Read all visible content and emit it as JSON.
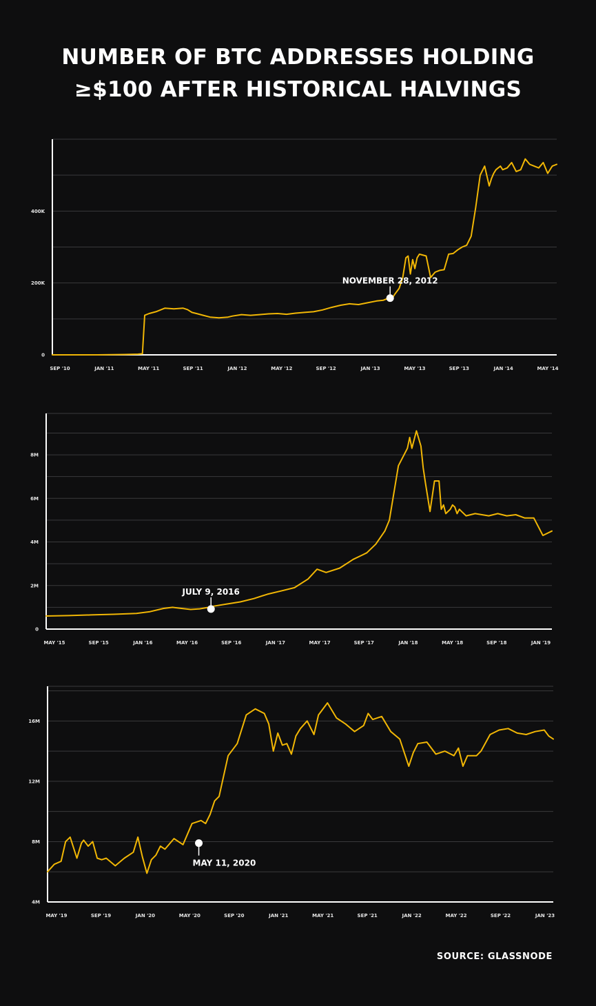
{
  "title_line1": "NUMBER OF BTC ADDRESSES HOLDING",
  "title_line2": "≥$100 AFTER HISTORICAL HALVINGS",
  "source": "SOURCE: GLASSNODE",
  "colors": {
    "background": "#0e0e0f",
    "line": "#f2b705",
    "grid": "#3a3a3c",
    "axis": "#ffffff",
    "text": "#ffffff"
  },
  "chart_data": [
    {
      "type": "line",
      "title": "",
      "xlabel": "",
      "ylabel": "",
      "grid": true,
      "x_ticks": [
        "SEP '10",
        "JAN '11",
        "MAY '11",
        "SEP '11",
        "JAN '12",
        "MAY '12",
        "SEP '12",
        "JAN '13",
        "MAY '13",
        "SEP '13",
        "JAN '14",
        "MAY '14"
      ],
      "y_ticks": [
        {
          "label": "0",
          "value": 0
        },
        {
          "label": "200K",
          "value": 200000
        },
        {
          "label": "400K",
          "value": 400000
        }
      ],
      "ylim": [
        0,
        600000
      ],
      "xlim": [
        0,
        11.2
      ],
      "series": [
        {
          "x": [
            0,
            1,
            1.6,
            1.9,
            2.0,
            2.05,
            2.15,
            2.3,
            2.5,
            2.7,
            2.9,
            3.0,
            3.1,
            3.2,
            3.35,
            3.5,
            3.7,
            3.9,
            4.0,
            4.2,
            4.4,
            4.6,
            4.8,
            5.0,
            5.2,
            5.4,
            5.6,
            5.8,
            6.0,
            6.2,
            6.4,
            6.6,
            6.8,
            7.0,
            7.2,
            7.35,
            7.45,
            7.55,
            7.6,
            7.7,
            7.78,
            7.85,
            7.9,
            7.95,
            8.0,
            8.05,
            8.1,
            8.15,
            8.3,
            8.4,
            8.5,
            8.6,
            8.7,
            8.8,
            8.9,
            9.0,
            9.1,
            9.2,
            9.3,
            9.4,
            9.5,
            9.6,
            9.7,
            9.75,
            9.8,
            9.85,
            9.9,
            9.95,
            10.0,
            10.1,
            10.2,
            10.3,
            10.4,
            10.5,
            10.6,
            10.7,
            10.8,
            10.9,
            11.0,
            11.1,
            11.2
          ],
          "y": [
            0,
            0,
            1000,
            2000,
            3000,
            110000,
            115000,
            120000,
            130000,
            128000,
            130000,
            126000,
            118000,
            115000,
            110000,
            105000,
            103000,
            105000,
            108000,
            112000,
            110000,
            112000,
            114000,
            115000,
            113000,
            116000,
            118000,
            120000,
            125000,
            132000,
            138000,
            142000,
            140000,
            145000,
            150000,
            152000,
            157000,
            158000,
            168000,
            185000,
            215000,
            270000,
            275000,
            225000,
            265000,
            240000,
            270000,
            280000,
            275000,
            215000,
            230000,
            235000,
            237000,
            280000,
            282000,
            292000,
            300000,
            305000,
            330000,
            410000,
            500000,
            525000,
            470000,
            490000,
            505000,
            515000,
            520000,
            525000,
            515000,
            520000,
            535000,
            510000,
            515000,
            545000,
            530000,
            525000,
            520000,
            535000,
            505000,
            525000,
            530000
          ]
        }
      ],
      "annotation": {
        "label": "NOVEMBER 28, 2012",
        "x": 7.5,
        "y": 158000
      }
    },
    {
      "type": "line",
      "title": "",
      "xlabel": "",
      "ylabel": "",
      "grid": true,
      "x_ticks": [
        "MAY '15",
        "SEP '15",
        "JAN '16",
        "MAY '16",
        "SEP '16",
        "JAN '17",
        "MAY '17",
        "SEP '17",
        "JAN '18",
        "MAY '18",
        "SEP '18",
        "JAN '19"
      ],
      "y_ticks": [
        {
          "label": "0",
          "value": 0
        },
        {
          "label": "2M",
          "value": 2000000
        },
        {
          "label": "4M",
          "value": 4000000
        },
        {
          "label": "6M",
          "value": 6000000
        },
        {
          "label": "8M",
          "value": 8000000
        }
      ],
      "ylim": [
        0,
        9900000
      ],
      "xlim": [
        0,
        11.2
      ],
      "series": [
        {
          "x": [
            0,
            0.5,
            1,
            1.5,
            2.0,
            2.3,
            2.6,
            2.8,
            3.0,
            3.2,
            3.4,
            3.6,
            3.7,
            4.0,
            4.3,
            4.6,
            4.9,
            5.2,
            5.5,
            5.8,
            6.0,
            6.2,
            6.5,
            6.8,
            7.0,
            7.1,
            7.3,
            7.5,
            7.6,
            7.8,
            8.0,
            8.05,
            8.1,
            8.2,
            8.3,
            8.35,
            8.4,
            8.5,
            8.6,
            8.7,
            8.75,
            8.8,
            8.85,
            8.95,
            9.0,
            9.05,
            9.1,
            9.15,
            9.2,
            9.3,
            9.5,
            9.8,
            10.0,
            10.2,
            10.4,
            10.6,
            10.8,
            11.0,
            11.2
          ],
          "y": [
            600000,
            620000,
            650000,
            680000,
            720000,
            800000,
            950000,
            1000000,
            950000,
            900000,
            930000,
            1000000,
            1050000,
            1150000,
            1250000,
            1400000,
            1600000,
            1750000,
            1900000,
            2300000,
            2750000,
            2600000,
            2800000,
            3200000,
            3400000,
            3500000,
            3900000,
            4500000,
            5000000,
            7500000,
            8300000,
            8800000,
            8300000,
            9100000,
            8400000,
            7400000,
            6700000,
            5400000,
            6800000,
            6800000,
            5500000,
            5700000,
            5300000,
            5500000,
            5700000,
            5600000,
            5300000,
            5500000,
            5400000,
            5200000,
            5300000,
            5200000,
            5300000,
            5200000,
            5250000,
            5100000,
            5100000,
            4300000,
            4500000
          ]
        }
      ],
      "annotation": {
        "label": "JULY 9, 2016",
        "x": 3.65,
        "y": 920000
      }
    },
    {
      "type": "line",
      "title": "",
      "xlabel": "",
      "ylabel": "",
      "grid": true,
      "x_ticks": [
        "MAY '19",
        "SEP '19",
        "JAN '20",
        "MAY '20",
        "SEP '20",
        "JAN '21",
        "MAY '21",
        "SEP '21",
        "JAN '22",
        "MAY '22",
        "SEP '22",
        "JAN '23"
      ],
      "y_ticks": [
        {
          "label": "4M",
          "value": 4000000
        },
        {
          "label": "8M",
          "value": 8000000
        },
        {
          "label": "12M",
          "value": 12000000
        },
        {
          "label": "16M",
          "value": 16000000
        }
      ],
      "ylim": [
        4000000,
        18300000
      ],
      "xlim": [
        0,
        11.2
      ],
      "series": [
        {
          "x": [
            0,
            0.15,
            0.3,
            0.4,
            0.5,
            0.65,
            0.75,
            0.8,
            0.9,
            1.0,
            1.1,
            1.2,
            1.3,
            1.5,
            1.7,
            1.9,
            2.0,
            2.1,
            2.2,
            2.3,
            2.4,
            2.5,
            2.6,
            2.8,
            3.0,
            3.2,
            3.4,
            3.5,
            3.6,
            3.7,
            3.8,
            4.0,
            4.2,
            4.4,
            4.6,
            4.8,
            4.9,
            5.0,
            5.1,
            5.2,
            5.3,
            5.4,
            5.5,
            5.6,
            5.75,
            5.9,
            6.0,
            6.2,
            6.4,
            6.6,
            6.8,
            7.0,
            7.1,
            7.2,
            7.4,
            7.6,
            7.8,
            8.0,
            8.1,
            8.2,
            8.4,
            8.6,
            8.8,
            9.0,
            9.1,
            9.2,
            9.3,
            9.5,
            9.6,
            9.8,
            10.0,
            10.2,
            10.4,
            10.6,
            10.8,
            11.0,
            11.1,
            11.2
          ],
          "y": [
            6000000,
            6500000,
            6700000,
            8000000,
            8300000,
            6900000,
            7900000,
            8100000,
            7700000,
            8000000,
            6900000,
            6800000,
            6900000,
            6400000,
            6900000,
            7300000,
            8300000,
            7000000,
            5900000,
            6800000,
            7100000,
            7700000,
            7500000,
            8200000,
            7800000,
            9200000,
            9400000,
            9200000,
            9800000,
            10700000,
            11000000,
            13700000,
            14500000,
            16400000,
            16800000,
            16500000,
            15800000,
            14000000,
            15200000,
            14400000,
            14500000,
            13800000,
            15000000,
            15500000,
            16000000,
            15100000,
            16400000,
            17200000,
            16200000,
            15800000,
            15300000,
            15700000,
            16500000,
            16100000,
            16300000,
            15300000,
            14800000,
            13000000,
            13900000,
            14500000,
            14600000,
            13800000,
            14000000,
            13700000,
            14200000,
            13000000,
            13700000,
            13700000,
            14000000,
            15100000,
            15400000,
            15500000,
            15200000,
            15100000,
            15300000,
            15400000,
            15000000,
            14800000
          ]
        }
      ],
      "annotation": {
        "label": "MAY 11, 2020",
        "x": 3.35,
        "y": 7900000
      }
    }
  ]
}
